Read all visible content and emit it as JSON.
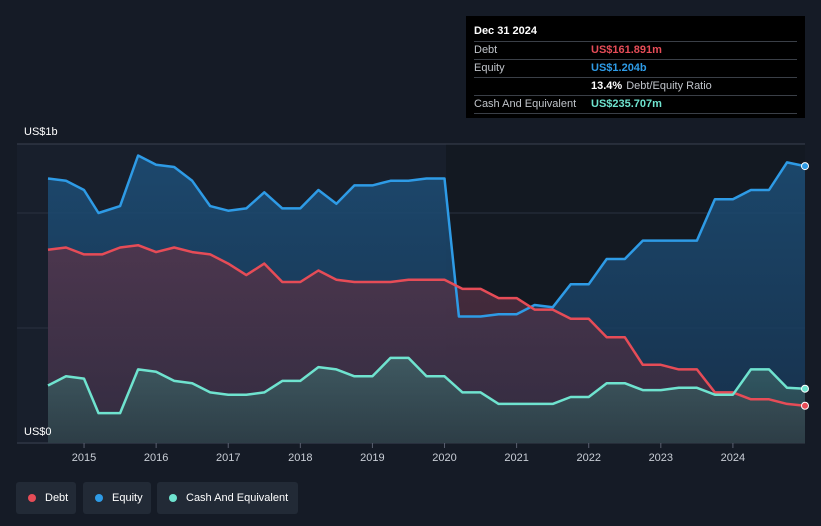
{
  "tooltip": {
    "date": "Dec 31 2024",
    "rows": [
      {
        "label": "Debt",
        "value": "US$161.891m"
      },
      {
        "label": "Equity",
        "value": "US$1.204b"
      },
      {
        "ratio_value": "13.4%",
        "ratio_text": "Debt/Equity Ratio"
      },
      {
        "label": "Cash And Equivalent",
        "value": "US$235.707m"
      }
    ]
  },
  "legend": {
    "items": [
      {
        "label": "Debt",
        "color": "#e64c57"
      },
      {
        "label": "Equity",
        "color": "#2e9be6"
      },
      {
        "label": "Cash And Equivalent",
        "color": "#6fe3cf"
      }
    ]
  },
  "chart_data": {
    "type": "area",
    "ylabel_top": "US$1b",
    "ylabel_bottom": "US$0",
    "ylim": [
      0,
      1.3
    ],
    "x_ticks": [
      "2015",
      "2016",
      "2017",
      "2018",
      "2019",
      "2020",
      "2021",
      "2022",
      "2023",
      "2024"
    ],
    "grid": true,
    "legend_position": "bottom-left",
    "series": [
      {
        "name": "Equity",
        "color": "#2e9be6",
        "x": [
          2014.5,
          2014.75,
          2015.0,
          2015.2,
          2015.5,
          2015.75,
          2016.0,
          2016.25,
          2016.5,
          2016.75,
          2017.0,
          2017.25,
          2017.5,
          2017.75,
          2018.0,
          2018.25,
          2018.5,
          2018.75,
          2019.0,
          2019.25,
          2019.5,
          2019.75,
          2020.0,
          2020.2,
          2020.5,
          2020.75,
          2021.0,
          2021.25,
          2021.5,
          2021.75,
          2022.0,
          2022.25,
          2022.5,
          2022.75,
          2023.0,
          2023.25,
          2023.5,
          2023.75,
          2024.0,
          2024.25,
          2024.5,
          2024.75,
          2025.0
        ],
        "values": [
          1.15,
          1.14,
          1.1,
          1.0,
          1.03,
          1.25,
          1.21,
          1.2,
          1.14,
          1.03,
          1.01,
          1.02,
          1.09,
          1.02,
          1.02,
          1.1,
          1.04,
          1.12,
          1.12,
          1.14,
          1.14,
          1.15,
          1.15,
          0.55,
          0.55,
          0.56,
          0.56,
          0.6,
          0.59,
          0.69,
          0.69,
          0.8,
          0.8,
          0.88,
          0.88,
          0.88,
          0.88,
          1.06,
          1.06,
          1.1,
          1.1,
          1.22,
          1.204
        ]
      },
      {
        "name": "Debt",
        "color": "#e64c57",
        "x": [
          2014.5,
          2014.75,
          2015.0,
          2015.25,
          2015.5,
          2015.75,
          2016.0,
          2016.25,
          2016.5,
          2016.75,
          2017.0,
          2017.25,
          2017.5,
          2017.75,
          2018.0,
          2018.25,
          2018.5,
          2018.75,
          2019.0,
          2019.25,
          2019.5,
          2019.75,
          2020.0,
          2020.25,
          2020.5,
          2020.75,
          2021.0,
          2021.25,
          2021.5,
          2021.75,
          2022.0,
          2022.25,
          2022.5,
          2022.75,
          2023.0,
          2023.25,
          2023.5,
          2023.75,
          2024.0,
          2024.25,
          2024.5,
          2024.75,
          2025.0
        ],
        "values": [
          0.84,
          0.85,
          0.82,
          0.82,
          0.85,
          0.86,
          0.83,
          0.85,
          0.83,
          0.82,
          0.78,
          0.73,
          0.78,
          0.7,
          0.7,
          0.75,
          0.71,
          0.7,
          0.7,
          0.7,
          0.71,
          0.71,
          0.71,
          0.67,
          0.67,
          0.63,
          0.63,
          0.58,
          0.58,
          0.54,
          0.54,
          0.46,
          0.46,
          0.34,
          0.34,
          0.32,
          0.32,
          0.22,
          0.22,
          0.19,
          0.19,
          0.17,
          0.162
        ]
      },
      {
        "name": "Cash And Equivalent",
        "color": "#6fe3cf",
        "x": [
          2014.5,
          2014.75,
          2015.0,
          2015.2,
          2015.5,
          2015.75,
          2016.0,
          2016.25,
          2016.5,
          2016.75,
          2017.0,
          2017.25,
          2017.5,
          2017.75,
          2018.0,
          2018.25,
          2018.5,
          2018.75,
          2019.0,
          2019.25,
          2019.5,
          2019.75,
          2020.0,
          2020.25,
          2020.5,
          2020.75,
          2021.0,
          2021.25,
          2021.5,
          2021.75,
          2022.0,
          2022.25,
          2022.5,
          2022.75,
          2023.0,
          2023.25,
          2023.5,
          2023.75,
          2024.0,
          2024.25,
          2024.5,
          2024.75,
          2025.0
        ],
        "values": [
          0.25,
          0.29,
          0.28,
          0.13,
          0.13,
          0.32,
          0.31,
          0.27,
          0.26,
          0.22,
          0.21,
          0.21,
          0.22,
          0.27,
          0.27,
          0.33,
          0.32,
          0.29,
          0.29,
          0.37,
          0.37,
          0.29,
          0.29,
          0.22,
          0.22,
          0.17,
          0.17,
          0.17,
          0.17,
          0.2,
          0.2,
          0.26,
          0.26,
          0.23,
          0.23,
          0.24,
          0.24,
          0.21,
          0.21,
          0.32,
          0.32,
          0.24,
          0.236
        ]
      }
    ]
  }
}
